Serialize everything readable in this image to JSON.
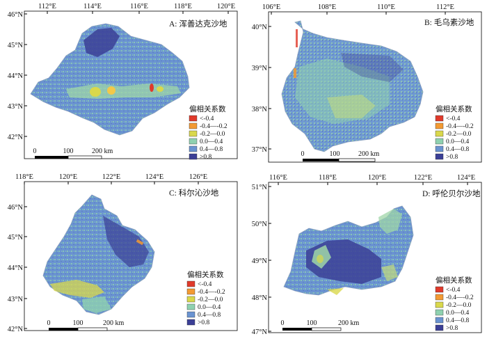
{
  "legend": {
    "title": "偏相关系数",
    "classes": [
      {
        "label": "<-0.4",
        "color": "#e03a2b"
      },
      {
        "label": "-0.4—-0.2",
        "color": "#f39a33"
      },
      {
        "label": "-0.2—0.0",
        "color": "#d9d84c"
      },
      {
        "label": "0.0—0.4",
        "color": "#8fd1b0"
      },
      {
        "label": "0.4—0.8",
        "color": "#6a93d1"
      },
      {
        "label": ">0.8",
        "color": "#3b3f96"
      }
    ]
  },
  "panels": [
    {
      "id": "A",
      "title": "A: 浑善达克沙地",
      "lon_ticks": [
        "112°E",
        "114°E",
        "116°E",
        "118°E",
        "120°E"
      ],
      "lat_ticks": [
        "46°N",
        "45°N",
        "44°N",
        "43°N",
        "42°N"
      ],
      "scale": {
        "labels": [
          "0",
          "100",
          "200 km"
        ]
      }
    },
    {
      "id": "B",
      "title": "B: 毛乌素沙地",
      "lon_ticks": [
        "106°E",
        "108°E",
        "110°E",
        "112°E"
      ],
      "lat_ticks": [
        "40°N",
        "39°N",
        "38°N",
        "37°N"
      ],
      "scale": {
        "labels": [
          "0",
          "100",
          "200 km"
        ]
      }
    },
    {
      "id": "C",
      "title": "C: 科尔沁沙地",
      "lon_ticks": [
        "118°E",
        "120°E",
        "122°E",
        "124°E",
        "126°E"
      ],
      "lat_ticks": [
        "46°N",
        "45°N",
        "44°N",
        "43°N",
        "42°N"
      ],
      "scale": {
        "labels": [
          "0",
          "100",
          "200 km"
        ]
      }
    },
    {
      "id": "D",
      "title": "D: 呼伦贝尔沙地",
      "lon_ticks": [
        "116°E",
        "118°E",
        "120°E",
        "122°E",
        "124°E"
      ],
      "lat_ticks": [
        "51°N",
        "50°N",
        "49°N",
        "48°N",
        "47°N"
      ],
      "scale": {
        "labels": [
          "0",
          "100",
          "200 km"
        ]
      }
    }
  ]
}
